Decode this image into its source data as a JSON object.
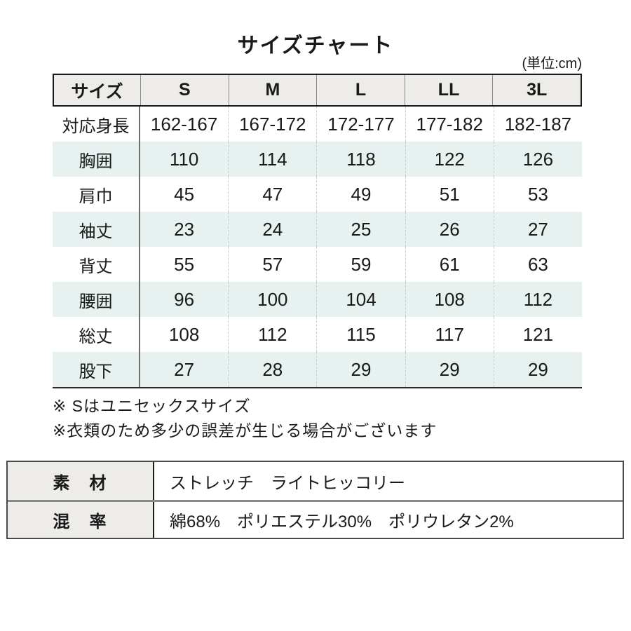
{
  "title": "サイズチャート",
  "unit_note": "(単位:cm)",
  "chart_data": {
    "type": "table",
    "title": "サイズチャート",
    "unit": "cm",
    "columns": [
      "サイズ",
      "S",
      "M",
      "L",
      "LL",
      "3L"
    ],
    "rows": [
      {
        "label": "対応身長",
        "values": [
          "162-167",
          "167-172",
          "172-177",
          "177-182",
          "182-187"
        ]
      },
      {
        "label": "胸囲",
        "values": [
          "110",
          "114",
          "118",
          "122",
          "126"
        ]
      },
      {
        "label": "肩巾",
        "values": [
          "45",
          "47",
          "49",
          "51",
          "53"
        ]
      },
      {
        "label": "袖丈",
        "values": [
          "23",
          "24",
          "25",
          "26",
          "27"
        ]
      },
      {
        "label": "背丈",
        "values": [
          "55",
          "57",
          "59",
          "61",
          "63"
        ]
      },
      {
        "label": "腰囲",
        "values": [
          "96",
          "100",
          "104",
          "108",
          "112"
        ]
      },
      {
        "label": "総丈",
        "values": [
          "108",
          "112",
          "115",
          "117",
          "121"
        ]
      },
      {
        "label": "股下",
        "values": [
          "27",
          "28",
          "29",
          "29",
          "29"
        ]
      }
    ]
  },
  "notes": [
    "※ Sはユニセックスサイズ",
    "※衣類のため多少の誤差が生じる場合がございます"
  ],
  "spec_table": {
    "rows": [
      {
        "label": "素　材",
        "value": "ストレッチ　ライトヒッコリー"
      },
      {
        "label": "混　率",
        "value": "綿68%　ポリエステル30%　ポリウレタン2%"
      }
    ]
  },
  "colors": {
    "header_bg": "#edece8",
    "stripe_bg": "#e7f1f0",
    "text": "#1a1a1a",
    "header_border": "#1a1a1a",
    "solid_divider": "#6e6e6e",
    "dashed_divider": "#cccccc"
  }
}
